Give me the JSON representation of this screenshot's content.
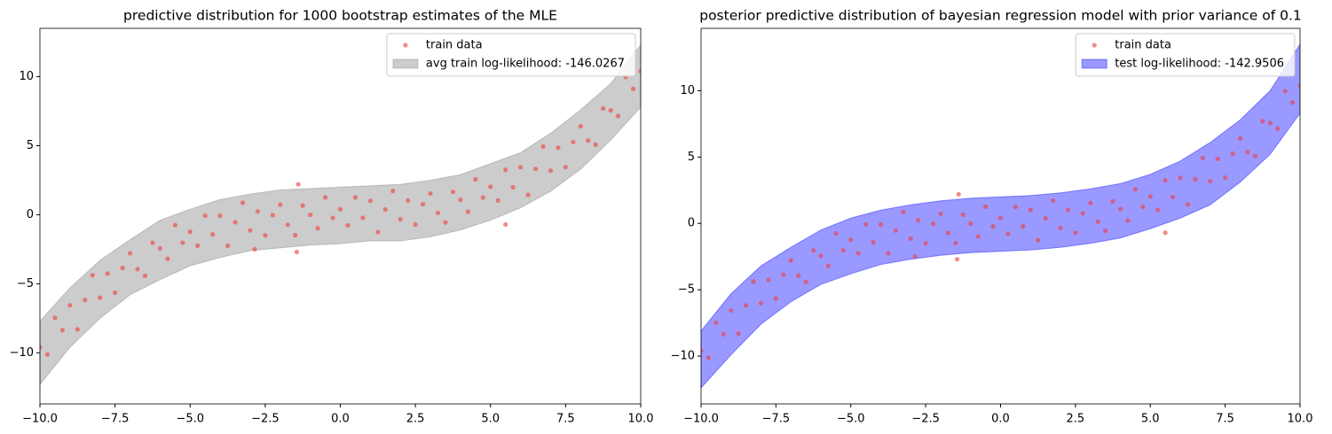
{
  "chart_data": [
    {
      "type": "scatter",
      "title": "predictive distribution for 1000 bootstrap estimates of the MLE",
      "xlim": [
        -10,
        10
      ],
      "ylim": [
        -13.7,
        13.5
      ],
      "xticks": [
        {
          "value": -10,
          "label": "−10.0"
        },
        {
          "value": -7.5,
          "label": "−7.5"
        },
        {
          "value": -5,
          "label": "−5.0"
        },
        {
          "value": -2.5,
          "label": "−2.5"
        },
        {
          "value": 0,
          "label": "0.0"
        },
        {
          "value": 2.5,
          "label": "2.5"
        },
        {
          "value": 5,
          "label": "5.0"
        },
        {
          "value": 7.5,
          "label": "7.5"
        },
        {
          "value": 10,
          "label": "10.0"
        }
      ],
      "yticks": [
        {
          "value": -10,
          "label": "−10"
        },
        {
          "value": -5,
          "label": "−5"
        },
        0,
        5,
        10
      ],
      "legend": "upper right",
      "series": [
        {
          "name": "train data",
          "color": "#f03c3c",
          "x": [
            -10,
            -9.75,
            -9.5,
            -9.25,
            -9,
            -8.75,
            -8.5,
            -8.25,
            -8,
            -7.75,
            -7.5,
            -7.25,
            -7,
            -6.75,
            -6.5,
            -6.25,
            -6,
            -5.75,
            -5.5,
            -5.25,
            -5,
            -4.75,
            -4.5,
            -4.25,
            -4,
            -3.75,
            -3.5,
            -3.25,
            -3,
            -2.75,
            -2.5,
            -2.25,
            -2,
            -1.75,
            -1.5,
            -1.25,
            -1,
            -0.75,
            -0.5,
            -0.25,
            0,
            0.25,
            0.5,
            0.75,
            1,
            1.25,
            1.5,
            1.75,
            2,
            2.25,
            2.5,
            2.75,
            3,
            3.25,
            3.5,
            3.75,
            4,
            4.25,
            4.5,
            4.75,
            5,
            5.25,
            5.5,
            5.75,
            6,
            6.25,
            6.5,
            6.75,
            7,
            7.25,
            7.5,
            7.75,
            8,
            8.25,
            8.5,
            8.75,
            9,
            9.25,
            9.5,
            9.75,
            10,
            -1.4,
            -1.45,
            -2.85,
            5.5
          ],
          "values": [
            -9.6,
            -10.12,
            -7.47,
            -8.35,
            -6.56,
            -8.3,
            -6.18,
            -4.38,
            -6.01,
            -4.26,
            -5.65,
            -3.86,
            -2.79,
            -3.94,
            -4.42,
            -2.03,
            -2.44,
            -3.19,
            -0.75,
            -2.03,
            -1.23,
            -2.24,
            -0.07,
            -1.42,
            -0.08,
            -2.25,
            -0.54,
            0.87,
            -1.14,
            0.24,
            -1.49,
            -0.03,
            0.73,
            -0.72,
            -1.48,
            0.66,
            -0.01,
            -0.98,
            1.25,
            -0.23,
            0.4,
            -0.77,
            1.25,
            -0.22,
            1.01,
            -1.26,
            0.38,
            1.72,
            -0.33,
            1.03,
            -0.71,
            0.76,
            1.54,
            0.13,
            -0.56,
            1.65,
            1.08,
            0.22,
            2.57,
            1.24,
            2.03,
            1.03,
            3.25,
            1.99,
            3.44,
            1.43,
            3.32,
            4.94,
            3.19,
            4.86,
            3.45,
            5.26,
            6.41,
            5.38,
            5.08,
            7.7,
            7.56,
            7.15,
            9.97,
            9.12,
            10.4,
            2.2,
            -2.7,
            -2.5,
            -0.7
          ]
        }
      ],
      "band": {
        "name": "avg train log-likelihood: -146.0267",
        "color": "#808080",
        "x": [
          -10,
          -9,
          -8,
          -7,
          -6,
          -5,
          -4,
          -3,
          -2,
          -1,
          0,
          1,
          2,
          3,
          4,
          5,
          6,
          7,
          8,
          9,
          10
        ],
        "lower": [
          -12.3,
          -9.6,
          -7.5,
          -5.8,
          -4.7,
          -3.7,
          -3.1,
          -2.6,
          -2.4,
          -2.2,
          -2.1,
          -1.9,
          -1.9,
          -1.6,
          -1.1,
          -0.4,
          0.5,
          1.7,
          3.3,
          5.4,
          7.8
        ],
        "upper": [
          -7.7,
          -5.3,
          -3.3,
          -1.8,
          -0.4,
          0.4,
          1.1,
          1.5,
          1.8,
          1.9,
          2.0,
          2.1,
          2.2,
          2.5,
          2.9,
          3.7,
          4.5,
          5.9,
          7.6,
          9.5,
          12.3
        ]
      }
    },
    {
      "type": "scatter",
      "title": "posterior predictive distribution of bayesian regression model with prior variance of 0.1",
      "xlim": [
        -10,
        10
      ],
      "ylim": [
        -13.6,
        14.7
      ],
      "xticks": [
        {
          "value": -10,
          "label": "−10.0"
        },
        {
          "value": -7.5,
          "label": "−7.5"
        },
        {
          "value": -5,
          "label": "−5.0"
        },
        {
          "value": -2.5,
          "label": "−2.5"
        },
        {
          "value": 0,
          "label": "0.0"
        },
        {
          "value": 2.5,
          "label": "2.5"
        },
        {
          "value": 5,
          "label": "5.0"
        },
        {
          "value": 7.5,
          "label": "7.5"
        },
        {
          "value": 10,
          "label": "10.0"
        }
      ],
      "yticks": [
        {
          "value": -10,
          "label": "−10"
        },
        {
          "value": -5,
          "label": "−5"
        },
        0,
        5,
        10
      ],
      "legend": "upper right",
      "series": [
        {
          "name": "train data",
          "color": "#f03c3c",
          "x": [
            -10,
            -9.75,
            -9.5,
            -9.25,
            -9,
            -8.75,
            -8.5,
            -8.25,
            -8,
            -7.75,
            -7.5,
            -7.25,
            -7,
            -6.75,
            -6.5,
            -6.25,
            -6,
            -5.75,
            -5.5,
            -5.25,
            -5,
            -4.75,
            -4.5,
            -4.25,
            -4,
            -3.75,
            -3.5,
            -3.25,
            -3,
            -2.75,
            -2.5,
            -2.25,
            -2,
            -1.75,
            -1.5,
            -1.25,
            -1,
            -0.75,
            -0.5,
            -0.25,
            0,
            0.25,
            0.5,
            0.75,
            1,
            1.25,
            1.5,
            1.75,
            2,
            2.25,
            2.5,
            2.75,
            3,
            3.25,
            3.5,
            3.75,
            4,
            4.25,
            4.5,
            4.75,
            5,
            5.25,
            5.5,
            5.75,
            6,
            6.25,
            6.5,
            6.75,
            7,
            7.25,
            7.5,
            7.75,
            8,
            8.25,
            8.5,
            8.75,
            9,
            9.25,
            9.5,
            9.75,
            10,
            -1.4,
            -1.45,
            -2.85,
            5.5
          ],
          "values": [
            -9.6,
            -10.12,
            -7.47,
            -8.35,
            -6.56,
            -8.3,
            -6.18,
            -4.38,
            -6.01,
            -4.26,
            -5.65,
            -3.86,
            -2.79,
            -3.94,
            -4.42,
            -2.03,
            -2.44,
            -3.19,
            -0.75,
            -2.03,
            -1.23,
            -2.24,
            -0.07,
            -1.42,
            -0.08,
            -2.25,
            -0.54,
            0.87,
            -1.14,
            0.24,
            -1.49,
            -0.03,
            0.73,
            -0.72,
            -1.48,
            0.66,
            -0.01,
            -0.98,
            1.25,
            -0.23,
            0.4,
            -0.77,
            1.25,
            -0.22,
            1.01,
            -1.26,
            0.38,
            1.72,
            -0.33,
            1.03,
            -0.71,
            0.76,
            1.54,
            0.13,
            -0.56,
            1.65,
            1.08,
            0.22,
            2.57,
            1.24,
            2.03,
            1.03,
            3.25,
            1.99,
            3.44,
            1.43,
            3.32,
            4.94,
            3.19,
            4.86,
            3.45,
            5.26,
            6.41,
            5.38,
            5.08,
            7.7,
            7.56,
            7.15,
            9.97,
            9.12,
            10.4,
            2.2,
            -2.7,
            -2.5,
            -0.7
          ]
        }
      ],
      "band": {
        "name": "test log-likelihood: -142.9506",
        "color": "#0000ff",
        "x": [
          -10,
          -9,
          -8,
          -7,
          -6,
          -5,
          -4,
          -3,
          -2,
          -1,
          0,
          1,
          2,
          3,
          4,
          5,
          6,
          7,
          8,
          9,
          10
        ],
        "lower": [
          -12.4,
          -9.9,
          -7.6,
          -5.9,
          -4.6,
          -3.8,
          -3.1,
          -2.7,
          -2.4,
          -2.2,
          -2.1,
          -2.0,
          -1.8,
          -1.5,
          -1.1,
          -0.4,
          0.4,
          1.4,
          3.1,
          5.2,
          8.3
        ],
        "upper": [
          -8.1,
          -5.3,
          -3.2,
          -1.8,
          -0.5,
          0.4,
          1.0,
          1.4,
          1.7,
          1.9,
          2.0,
          2.1,
          2.3,
          2.6,
          3.0,
          3.7,
          4.7,
          6.1,
          7.8,
          10.0,
          13.5
        ]
      }
    }
  ]
}
